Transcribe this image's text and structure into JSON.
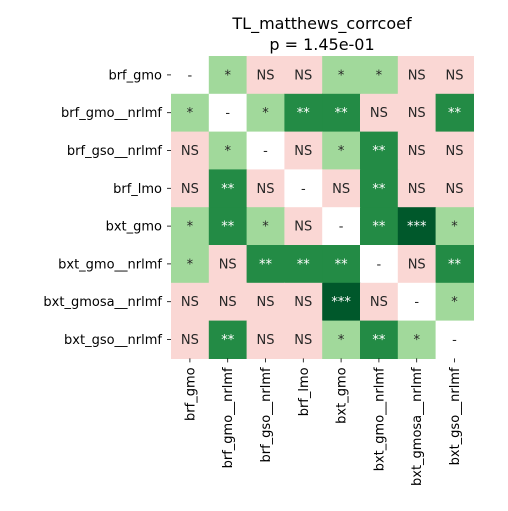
{
  "chart_data": {
    "type": "heatmap",
    "title": "TL_matthews_corrcoef",
    "subtitle": "p = 1.45e-01",
    "row_labels": [
      "brf_gmo",
      "brf_gmo__nrlmf",
      "brf_gso__nrlmf",
      "brf_lmo",
      "bxt_gmo",
      "bxt_gmo__nrlmf",
      "bxt_gmosa__nrlmf",
      "bxt_gso__nrlmf"
    ],
    "col_labels": [
      "brf_gmo",
      "brf_gmo__nrlmf",
      "brf_gso__nrlmf",
      "brf_lmo",
      "bxt_gmo",
      "bxt_gmo__nrlmf",
      "bxt_gmosa__nrlmf",
      "bxt_gso__nrlmf"
    ],
    "cells": [
      [
        "-",
        "*",
        "NS",
        "NS",
        "*",
        "*",
        "NS",
        "NS"
      ],
      [
        "*",
        "-",
        "*",
        "**",
        "**",
        "NS",
        "NS",
        "**"
      ],
      [
        "NS",
        "*",
        "-",
        "NS",
        "*",
        "**",
        "NS",
        "NS"
      ],
      [
        "NS",
        "**",
        "NS",
        "-",
        "NS",
        "**",
        "NS",
        "NS"
      ],
      [
        "*",
        "**",
        "*",
        "NS",
        "-",
        "**",
        "***",
        "*"
      ],
      [
        "*",
        "NS",
        "**",
        "**",
        "**",
        "-",
        "NS",
        "**"
      ],
      [
        "NS",
        "NS",
        "NS",
        "NS",
        "***",
        "NS",
        "-",
        "*"
      ],
      [
        "NS",
        "**",
        "NS",
        "NS",
        "*",
        "**",
        "*",
        "-"
      ]
    ],
    "colors": {
      "-": "#ffffff",
      "NS": "#fad7d4",
      "*": "#a1d99b",
      "**": "#238b45",
      "***": "#00582b"
    },
    "text_colors": {
      "-": "#262626",
      "NS": "#262626",
      "*": "#262626",
      "**": "#ffffff",
      "***": "#ffffff"
    }
  }
}
